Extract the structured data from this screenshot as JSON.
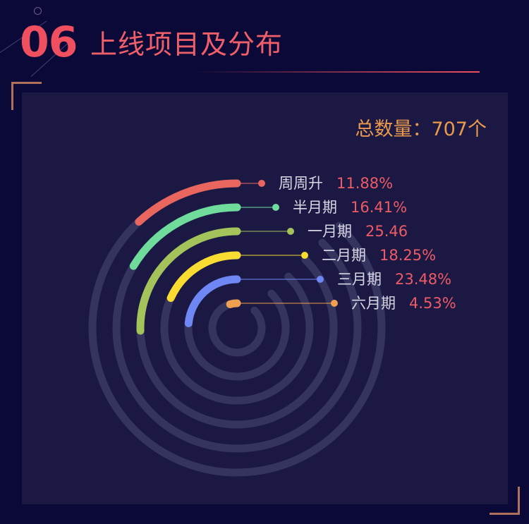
{
  "header": {
    "number": "06",
    "title": "上线项目及分布"
  },
  "total": {
    "label": "总数量：",
    "value": "707个"
  },
  "colors": {
    "background": "#0b0938",
    "panel": "#1b1943",
    "track": "#35345f",
    "accent": "#ef4f5f",
    "total": "#e99a4d"
  },
  "chart_data": {
    "type": "radial-bar",
    "max_percent": 100,
    "series": [
      {
        "name": "周周升",
        "value": 11.88,
        "label": "11.88%",
        "color": "#e8665e"
      },
      {
        "name": "半月期",
        "value": 16.41,
        "label": "16.41%",
        "color": "#6fdc9c"
      },
      {
        "name": "一月期",
        "value": 25.46,
        "label": "25.46",
        "color": "#a4c35a"
      },
      {
        "name": "二月期",
        "value": 18.25,
        "label": "18.25%",
        "color": "#f9dc32"
      },
      {
        "name": "三月期",
        "value": 23.48,
        "label": "23.48%",
        "color": "#6f86f5"
      },
      {
        "name": "六月期",
        "value": 4.53,
        "label": "4.53%",
        "color": "#f0a04f"
      }
    ]
  }
}
